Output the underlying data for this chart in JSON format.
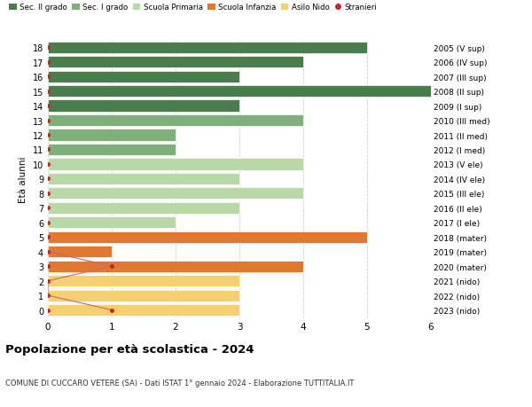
{
  "ages": [
    18,
    17,
    16,
    15,
    14,
    13,
    12,
    11,
    10,
    9,
    8,
    7,
    6,
    5,
    4,
    3,
    2,
    1,
    0
  ],
  "right_labels": [
    "2005 (V sup)",
    "2006 (IV sup)",
    "2007 (III sup)",
    "2008 (II sup)",
    "2009 (I sup)",
    "2010 (III med)",
    "2011 (II med)",
    "2012 (I med)",
    "2013 (V ele)",
    "2014 (IV ele)",
    "2015 (III ele)",
    "2016 (II ele)",
    "2017 (I ele)",
    "2018 (mater)",
    "2019 (mater)",
    "2020 (mater)",
    "2021 (nido)",
    "2022 (nido)",
    "2023 (nido)"
  ],
  "bar_values": [
    5,
    4,
    3,
    6,
    3,
    4,
    2,
    2,
    4,
    3,
    4,
    3,
    2,
    5,
    1,
    4,
    3,
    3,
    3
  ],
  "bar_colors": [
    "#4a7c4e",
    "#4a7c4e",
    "#4a7c4e",
    "#4a7c4e",
    "#4a7c4e",
    "#7fb07a",
    "#7fb07a",
    "#7fb07a",
    "#b8d8a8",
    "#b8d8a8",
    "#b8d8a8",
    "#b8d8a8",
    "#b8d8a8",
    "#e07830",
    "#e07830",
    "#e07830",
    "#f5d070",
    "#f5d070",
    "#f5d070"
  ],
  "stranieri_x": [
    0,
    0,
    0,
    0,
    0,
    0,
    0,
    0,
    0,
    0,
    0,
    0,
    0,
    0,
    0,
    1,
    0,
    0,
    1
  ],
  "legend_labels": [
    "Sec. II grado",
    "Sec. I grado",
    "Scuola Primaria",
    "Scuola Infanzia",
    "Asilo Nido",
    "Stranieri"
  ],
  "legend_colors": [
    "#4a7c4e",
    "#7fb07a",
    "#b8d8a8",
    "#e07830",
    "#f5d070",
    "#cc2222"
  ],
  "title": "Popolazione per età scolastica - 2024",
  "subtitle": "COMUNE DI CUCCARO VETERE (SA) - Dati ISTAT 1° gennaio 2024 - Elaborazione TUTTITALIA.IT",
  "ylabel_left": "Età alunni",
  "xlim": [
    0,
    6
  ],
  "background_color": "#ffffff",
  "grid_color": "#cccccc",
  "stranieri_dot_color": "#cc2222",
  "stranieri_line_color": "#cc6666"
}
